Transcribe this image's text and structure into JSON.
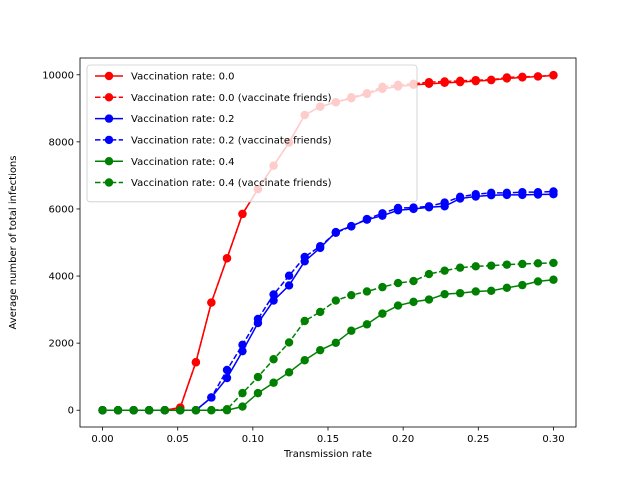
{
  "chart_data": {
    "type": "line",
    "xlabel": "Transmission rate",
    "ylabel": "Average number of total infections",
    "xlim": [
      -0.015,
      0.315
    ],
    "ylim": [
      -500,
      10500
    ],
    "xticks": [
      0.0,
      0.05,
      0.1,
      0.15,
      0.2,
      0.25,
      0.3
    ],
    "xtick_labels": [
      "0.00",
      "0.05",
      "0.10",
      "0.15",
      "0.20",
      "0.25",
      "0.30"
    ],
    "yticks": [
      0,
      2000,
      4000,
      6000,
      8000,
      10000
    ],
    "ytick_labels": [
      "0",
      "2000",
      "4000",
      "6000",
      "8000",
      "10000"
    ],
    "grid": false,
    "legend_position": "upper-left",
    "x": [
      0.0,
      0.0103,
      0.0207,
      0.031,
      0.0414,
      0.0517,
      0.0621,
      0.0724,
      0.0828,
      0.0931,
      0.1034,
      0.1138,
      0.1241,
      0.1345,
      0.1448,
      0.1552,
      0.1655,
      0.1759,
      0.1862,
      0.1966,
      0.2069,
      0.2172,
      0.2276,
      0.2379,
      0.2483,
      0.2586,
      0.269,
      0.2793,
      0.2897,
      0.3
    ],
    "series": [
      {
        "name": "Vaccination rate: 0.0",
        "color": "#ff0000",
        "dashed": false,
        "values": [
          0,
          0,
          0,
          0,
          0,
          80,
          1430,
          3210,
          4530,
          5850,
          6590,
          7290,
          7980,
          8800,
          9050,
          9180,
          9300,
          9430,
          9580,
          9650,
          9700,
          9730,
          9760,
          9780,
          9810,
          9840,
          9890,
          9920,
          9950,
          9980
        ]
      },
      {
        "name": "Vaccination rate: 0.0 (vaccinate friends)",
        "color": "#ff0000",
        "dashed": true,
        "values": [
          0,
          0,
          0,
          0,
          0,
          80,
          1430,
          3210,
          4530,
          5850,
          6590,
          7290,
          7980,
          8800,
          9050,
          9180,
          9330,
          9450,
          9640,
          9700,
          9730,
          9780,
          9800,
          9820,
          9840,
          9850,
          9920,
          9940,
          9950,
          9990
        ]
      },
      {
        "name": "Vaccination rate: 0.2",
        "color": "#0000ff",
        "dashed": false,
        "values": [
          0,
          0,
          0,
          0,
          0,
          0,
          0,
          380,
          960,
          1760,
          2600,
          3270,
          3720,
          4440,
          4840,
          5310,
          5490,
          5680,
          5800,
          5960,
          6000,
          6050,
          6080,
          6310,
          6370,
          6410,
          6420,
          6420,
          6430,
          6440
        ]
      },
      {
        "name": "Vaccination rate: 0.2 (vaccinate friends)",
        "color": "#0000ff",
        "dashed": true,
        "values": [
          0,
          0,
          0,
          0,
          0,
          0,
          0,
          380,
          1200,
          1950,
          2720,
          3450,
          4010,
          4570,
          4890,
          5290,
          5480,
          5700,
          5870,
          6030,
          6040,
          6080,
          6190,
          6360,
          6440,
          6480,
          6480,
          6500,
          6500,
          6520
        ]
      },
      {
        "name": "Vaccination rate: 0.4",
        "color": "#008000",
        "dashed": false,
        "values": [
          0,
          0,
          0,
          0,
          0,
          0,
          0,
          0,
          0,
          110,
          510,
          820,
          1130,
          1490,
          1790,
          2010,
          2370,
          2560,
          2880,
          3120,
          3230,
          3300,
          3460,
          3490,
          3540,
          3560,
          3650,
          3730,
          3840,
          3890
        ]
      },
      {
        "name": "Vaccination rate: 0.4 (vaccinate friends)",
        "color": "#008000",
        "dashed": true,
        "values": [
          0,
          0,
          0,
          0,
          0,
          0,
          0,
          0,
          30,
          510,
          990,
          1520,
          2020,
          2660,
          2930,
          3270,
          3430,
          3540,
          3670,
          3790,
          3850,
          4060,
          4160,
          4250,
          4290,
          4310,
          4340,
          4360,
          4380,
          4390
        ]
      }
    ]
  }
}
